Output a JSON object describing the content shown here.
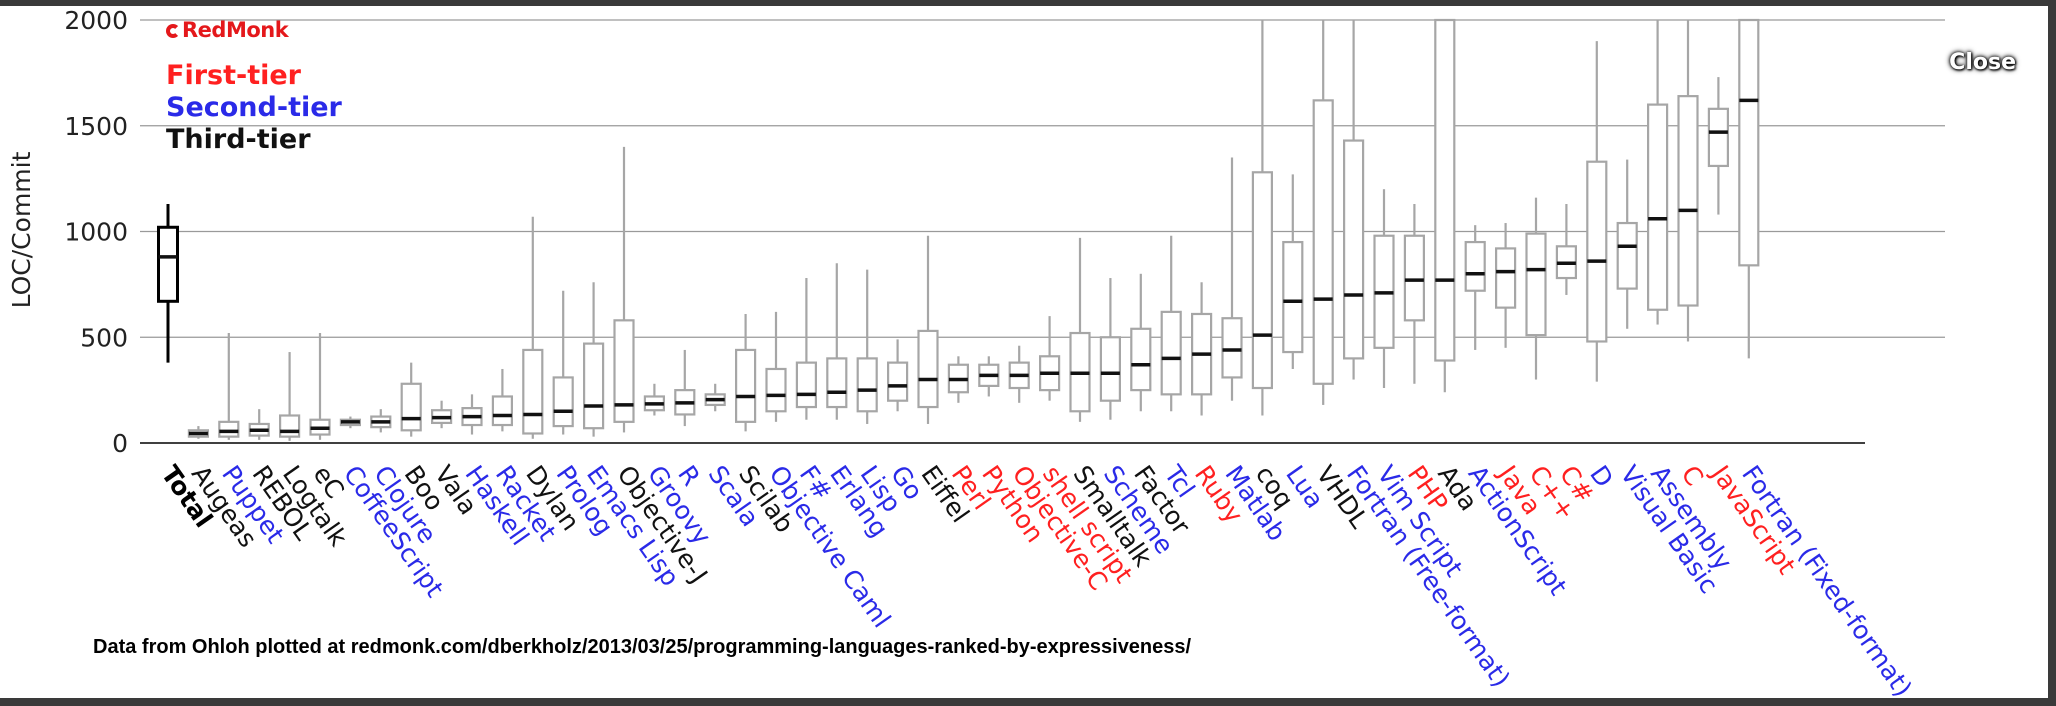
{
  "lightbox": {
    "close_label": "Close"
  },
  "logo": {
    "text": "RedMonk"
  },
  "tiers": {
    "first": {
      "label": "First-tier",
      "color": "#ff2020"
    },
    "second": {
      "label": "Second-tier",
      "color": "#2a2ae8"
    },
    "third": {
      "label": "Third-tier",
      "color": "#111111"
    }
  },
  "credit": "Data from Ohloh plotted at redmonk.com/dberkholz/2013/03/25/programming-languages-ranked-by-expressiveness/",
  "chart_data": {
    "type": "box",
    "ylabel": "LOC/Commit",
    "ylim": [
      0,
      2000
    ],
    "yticks": [
      0,
      500,
      1000,
      1500,
      2000
    ],
    "grid": "horizontal",
    "legend_position": "top-left",
    "box_color": "#a6a6a6",
    "items": [
      {
        "name": "Total",
        "tier": "total",
        "whisker_low": 380,
        "q1": 670,
        "median": 880,
        "q3": 1020,
        "whisker_high": 1130
      },
      {
        "name": "Augeas",
        "tier": "third",
        "whisker_low": 20,
        "q1": 30,
        "median": 45,
        "q3": 60,
        "whisker_high": 80
      },
      {
        "name": "Puppet",
        "tier": "second",
        "whisker_low": 15,
        "q1": 30,
        "median": 55,
        "q3": 100,
        "whisker_high": 520
      },
      {
        "name": "REBOL",
        "tier": "third",
        "whisker_low": 15,
        "q1": 35,
        "median": 60,
        "q3": 90,
        "whisker_high": 160
      },
      {
        "name": "Logtalk",
        "tier": "third",
        "whisker_low": 10,
        "q1": 30,
        "median": 55,
        "q3": 130,
        "whisker_high": 430
      },
      {
        "name": "eC",
        "tier": "third",
        "whisker_low": 15,
        "q1": 40,
        "median": 70,
        "q3": 110,
        "whisker_high": 520
      },
      {
        "name": "CoffeeScript",
        "tier": "second",
        "whisker_low": 70,
        "q1": 85,
        "median": 100,
        "q3": 110,
        "whisker_high": 125
      },
      {
        "name": "Clojure",
        "tier": "second",
        "whisker_low": 50,
        "q1": 75,
        "median": 100,
        "q3": 125,
        "whisker_high": 160
      },
      {
        "name": "Boo",
        "tier": "third",
        "whisker_low": 30,
        "q1": 60,
        "median": 115,
        "q3": 280,
        "whisker_high": 380
      },
      {
        "name": "Vala",
        "tier": "third",
        "whisker_low": 70,
        "q1": 95,
        "median": 120,
        "q3": 155,
        "whisker_high": 200
      },
      {
        "name": "Haskell",
        "tier": "second",
        "whisker_low": 40,
        "q1": 85,
        "median": 125,
        "q3": 165,
        "whisker_high": 230
      },
      {
        "name": "Racket",
        "tier": "second",
        "whisker_low": 55,
        "q1": 85,
        "median": 130,
        "q3": 220,
        "whisker_high": 350
      },
      {
        "name": "Dylan",
        "tier": "third",
        "whisker_low": 20,
        "q1": 45,
        "median": 135,
        "q3": 440,
        "whisker_high": 1070
      },
      {
        "name": "Prolog",
        "tier": "second",
        "whisker_low": 40,
        "q1": 80,
        "median": 150,
        "q3": 310,
        "whisker_high": 720
      },
      {
        "name": "Emacs Lisp",
        "tier": "second",
        "whisker_low": 30,
        "q1": 70,
        "median": 175,
        "q3": 470,
        "whisker_high": 760
      },
      {
        "name": "Objective-J",
        "tier": "third",
        "whisker_low": 50,
        "q1": 100,
        "median": 180,
        "q3": 580,
        "whisker_high": 1400
      },
      {
        "name": "Groovy",
        "tier": "second",
        "whisker_low": 130,
        "q1": 155,
        "median": 185,
        "q3": 220,
        "whisker_high": 280
      },
      {
        "name": "R",
        "tier": "second",
        "whisker_low": 80,
        "q1": 135,
        "median": 190,
        "q3": 250,
        "whisker_high": 440
      },
      {
        "name": "Scala",
        "tier": "second",
        "whisker_low": 150,
        "q1": 180,
        "median": 205,
        "q3": 230,
        "whisker_high": 280
      },
      {
        "name": "Scilab",
        "tier": "third",
        "whisker_low": 55,
        "q1": 100,
        "median": 220,
        "q3": 440,
        "whisker_high": 610
      },
      {
        "name": "Objective Caml",
        "tier": "second",
        "whisker_low": 100,
        "q1": 150,
        "median": 225,
        "q3": 350,
        "whisker_high": 620
      },
      {
        "name": "F#",
        "tier": "second",
        "whisker_low": 110,
        "q1": 170,
        "median": 230,
        "q3": 380,
        "whisker_high": 780
      },
      {
        "name": "Erlang",
        "tier": "second",
        "whisker_low": 110,
        "q1": 170,
        "median": 240,
        "q3": 400,
        "whisker_high": 850
      },
      {
        "name": "Lisp",
        "tier": "second",
        "whisker_low": 90,
        "q1": 150,
        "median": 250,
        "q3": 400,
        "whisker_high": 820
      },
      {
        "name": "Go",
        "tier": "second",
        "whisker_low": 150,
        "q1": 200,
        "median": 270,
        "q3": 380,
        "whisker_high": 490
      },
      {
        "name": "Eiffel",
        "tier": "third",
        "whisker_low": 90,
        "q1": 170,
        "median": 300,
        "q3": 530,
        "whisker_high": 980
      },
      {
        "name": "Perl",
        "tier": "first",
        "whisker_low": 190,
        "q1": 240,
        "median": 300,
        "q3": 370,
        "whisker_high": 410
      },
      {
        "name": "Python",
        "tier": "first",
        "whisker_low": 220,
        "q1": 270,
        "median": 320,
        "q3": 370,
        "whisker_high": 410
      },
      {
        "name": "Objective-C",
        "tier": "first",
        "whisker_low": 190,
        "q1": 260,
        "median": 320,
        "q3": 380,
        "whisker_high": 460
      },
      {
        "name": "shell script",
        "tier": "first",
        "whisker_low": 200,
        "q1": 250,
        "median": 330,
        "q3": 410,
        "whisker_high": 600
      },
      {
        "name": "Smalltalk",
        "tier": "third",
        "whisker_low": 100,
        "q1": 150,
        "median": 330,
        "q3": 520,
        "whisker_high": 970
      },
      {
        "name": "Scheme",
        "tier": "second",
        "whisker_low": 110,
        "q1": 200,
        "median": 330,
        "q3": 500,
        "whisker_high": 780
      },
      {
        "name": "Factor",
        "tier": "third",
        "whisker_low": 150,
        "q1": 250,
        "median": 370,
        "q3": 540,
        "whisker_high": 800
      },
      {
        "name": "Tcl",
        "tier": "second",
        "whisker_low": 150,
        "q1": 230,
        "median": 400,
        "q3": 620,
        "whisker_high": 980
      },
      {
        "name": "Ruby",
        "tier": "first",
        "whisker_low": 130,
        "q1": 230,
        "median": 420,
        "q3": 610,
        "whisker_high": 760
      },
      {
        "name": "Matlab",
        "tier": "second",
        "whisker_low": 200,
        "q1": 310,
        "median": 440,
        "q3": 590,
        "whisker_high": 1350
      },
      {
        "name": "coq",
        "tier": "third",
        "whisker_low": 130,
        "q1": 260,
        "median": 510,
        "q3": 1280,
        "whisker_high": 2000
      },
      {
        "name": "Lua",
        "tier": "second",
        "whisker_low": 350,
        "q1": 430,
        "median": 670,
        "q3": 950,
        "whisker_high": 1270
      },
      {
        "name": "VHDL",
        "tier": "third",
        "whisker_low": 180,
        "q1": 280,
        "median": 680,
        "q3": 1620,
        "whisker_high": 2000
      },
      {
        "name": "Fortran (Free-format)",
        "tier": "second",
        "whisker_low": 300,
        "q1": 400,
        "median": 700,
        "q3": 1430,
        "whisker_high": 2000
      },
      {
        "name": "Vim Script",
        "tier": "second",
        "whisker_low": 260,
        "q1": 450,
        "median": 710,
        "q3": 980,
        "whisker_high": 1200
      },
      {
        "name": "PHP",
        "tier": "first",
        "whisker_low": 280,
        "q1": 580,
        "median": 770,
        "q3": 980,
        "whisker_high": 1130
      },
      {
        "name": "Ada",
        "tier": "third",
        "whisker_low": 240,
        "q1": 390,
        "median": 770,
        "q3": 2000,
        "whisker_high": 2000
      },
      {
        "name": "ActionScript",
        "tier": "second",
        "whisker_low": 440,
        "q1": 720,
        "median": 800,
        "q3": 950,
        "whisker_high": 1030
      },
      {
        "name": "Java",
        "tier": "first",
        "whisker_low": 450,
        "q1": 640,
        "median": 810,
        "q3": 920,
        "whisker_high": 1040
      },
      {
        "name": "C++",
        "tier": "first",
        "whisker_low": 300,
        "q1": 510,
        "median": 820,
        "q3": 990,
        "whisker_high": 1160
      },
      {
        "name": "C#",
        "tier": "first",
        "whisker_low": 700,
        "q1": 780,
        "median": 850,
        "q3": 930,
        "whisker_high": 1130
      },
      {
        "name": "D",
        "tier": "second",
        "whisker_low": 290,
        "q1": 480,
        "median": 860,
        "q3": 1330,
        "whisker_high": 1900
      },
      {
        "name": "Visual Basic",
        "tier": "second",
        "whisker_low": 540,
        "q1": 730,
        "median": 930,
        "q3": 1040,
        "whisker_high": 1340
      },
      {
        "name": "Assembly",
        "tier": "second",
        "whisker_low": 560,
        "q1": 630,
        "median": 1060,
        "q3": 1600,
        "whisker_high": 2000
      },
      {
        "name": "C",
        "tier": "first",
        "whisker_low": 480,
        "q1": 650,
        "median": 1100,
        "q3": 1640,
        "whisker_high": 2000
      },
      {
        "name": "JavaScript",
        "tier": "first",
        "whisker_low": 1080,
        "q1": 1310,
        "median": 1470,
        "q3": 1580,
        "whisker_high": 1730
      },
      {
        "name": "Fortran (Fixed-format)",
        "tier": "second",
        "whisker_low": 400,
        "q1": 840,
        "median": 1620,
        "q3": 2000,
        "whisker_high": 2000
      }
    ]
  }
}
